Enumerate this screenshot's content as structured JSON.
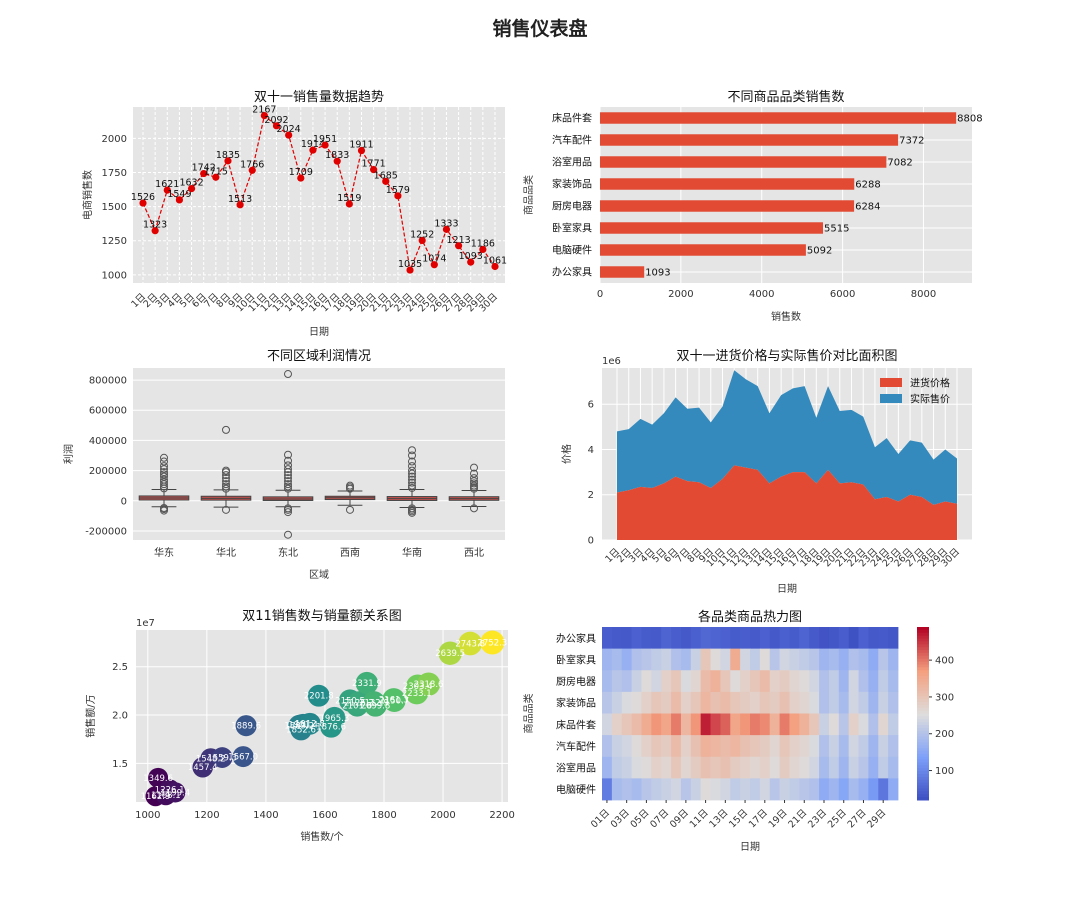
{
  "dashboard": {
    "title": "销售仪表盘"
  },
  "colors": {
    "panel_bg": "#e5e5e5",
    "red": "#e24a33",
    "blue": "#348abd",
    "grid": "#ffffff"
  },
  "chart_data": [
    {
      "id": "trend",
      "type": "line",
      "title": "双十一销售量数据趋势",
      "xlabel": "日期",
      "ylabel": "电商销售数",
      "categories": [
        "1日",
        "2日",
        "3日",
        "4日",
        "5日",
        "6日",
        "7日",
        "8日",
        "9日",
        "10日",
        "11日",
        "12日",
        "13日",
        "14日",
        "15日",
        "16日",
        "17日",
        "18日",
        "19日",
        "20日",
        "21日",
        "22日",
        "23日",
        "24日",
        "25日",
        "26日",
        "27日",
        "28日",
        "29日",
        "30日"
      ],
      "values": [
        1526,
        1323,
        1621,
        1549,
        1632,
        1742,
        1715,
        1835,
        1513,
        1766,
        2167,
        2092,
        2024,
        1709,
        1914,
        1951,
        1833,
        1519,
        1911,
        1771,
        1685,
        1579,
        1035,
        1252,
        1074,
        1333,
        1213,
        1093,
        1186,
        1061
      ],
      "yticks": [
        1000,
        1250,
        1500,
        1750,
        2000
      ],
      "ylim": [
        940,
        2230
      ],
      "line_color": "#e00000",
      "grid": true
    },
    {
      "id": "category",
      "type": "bar",
      "orientation": "horizontal",
      "title": "不同商品品类销售数",
      "xlabel": "销售数",
      "ylabel": "商品品类",
      "categories": [
        "床品件套",
        "汽车配件",
        "浴室用品",
        "家装饰品",
        "厨房电器",
        "卧室家具",
        "电脑硬件",
        "办公家具"
      ],
      "values": [
        8808,
        7372,
        7082,
        6288,
        6284,
        5515,
        5092,
        1093
      ],
      "xticks": [
        0,
        2000,
        4000,
        6000,
        8000
      ],
      "xlim": [
        0,
        9200
      ],
      "grid": true
    },
    {
      "id": "region",
      "type": "box",
      "title": "不同区域利润情况",
      "xlabel": "区域",
      "ylabel": "利润",
      "categories": [
        "华东",
        "华北",
        "东北",
        "西南",
        "华南",
        "西北"
      ],
      "boxes": [
        {
          "q1": 5000,
          "median": 18000,
          "q3": 32000,
          "low": -40000,
          "high": 75000,
          "outliers": [
            -65000,
            -55000,
            -48000,
            82000,
            95000,
            110000,
            125000,
            140000,
            160000,
            175000,
            190000,
            210000,
            230000,
            260000,
            285000
          ]
        },
        {
          "q1": 4000,
          "median": 16000,
          "q3": 30000,
          "low": -42000,
          "high": 72000,
          "outliers": [
            -60000,
            80000,
            95000,
            110000,
            130000,
            150000,
            170000,
            190000,
            200000,
            470000
          ]
        },
        {
          "q1": 2000,
          "median": 12000,
          "q3": 26000,
          "low": -40000,
          "high": 70000,
          "outliers": [
            -225000,
            -75000,
            -60000,
            -50000,
            80000,
            95000,
            110000,
            130000,
            150000,
            170000,
            190000,
            210000,
            235000,
            265000,
            305000,
            840000
          ]
        },
        {
          "q1": 8000,
          "median": 20000,
          "q3": 30000,
          "low": -30000,
          "high": 65000,
          "outliers": [
            -60000,
            80000,
            90000,
            100000
          ]
        },
        {
          "q1": 2000,
          "median": 14000,
          "q3": 28000,
          "low": -45000,
          "high": 75000,
          "outliers": [
            -80000,
            -70000,
            -60000,
            -50000,
            85000,
            100000,
            120000,
            140000,
            160000,
            180000,
            200000,
            230000,
            260000,
            300000,
            335000
          ]
        },
        {
          "q1": 3000,
          "median": 14000,
          "q3": 27000,
          "low": -38000,
          "high": 68000,
          "outliers": [
            -50000,
            80000,
            90000,
            100000,
            115000,
            130000,
            150000,
            180000,
            220000
          ]
        }
      ],
      "yticks": [
        -200000,
        0,
        200000,
        400000,
        600000,
        800000
      ],
      "ylim": [
        -260000,
        880000
      ],
      "box_color": "#c0504d",
      "grid": true
    },
    {
      "id": "price",
      "type": "area",
      "stacked": true,
      "title": "双十一进货价格与实际售价对比面积图",
      "xlabel": "日期",
      "ylabel": "价格",
      "scale_label": "1e6",
      "categories": [
        "1日",
        "2日",
        "3日",
        "4日",
        "5日",
        "6日",
        "7日",
        "8日",
        "9日",
        "10日",
        "11日",
        "12日",
        "13日",
        "14日",
        "15日",
        "16日",
        "17日",
        "18日",
        "19日",
        "20日",
        "21日",
        "22日",
        "23日",
        "24日",
        "25日",
        "26日",
        "27日",
        "28日",
        "29日",
        "30日"
      ],
      "series": [
        {
          "name": "进货价格",
          "color": "#e24a33",
          "values": [
            2.1,
            2.2,
            2.35,
            2.3,
            2.5,
            2.8,
            2.6,
            2.55,
            2.3,
            2.7,
            3.3,
            3.2,
            3.1,
            2.5,
            2.8,
            3.0,
            3.0,
            2.5,
            3.1,
            2.5,
            2.55,
            2.45,
            1.8,
            1.9,
            1.7,
            2.0,
            1.9,
            1.55,
            1.7,
            1.6
          ]
        },
        {
          "name": "实际售价",
          "color": "#348abd",
          "values": [
            2.7,
            2.7,
            3.0,
            2.8,
            3.1,
            3.5,
            3.2,
            3.3,
            2.9,
            3.2,
            4.2,
            3.9,
            3.7,
            3.1,
            3.6,
            3.7,
            3.8,
            2.9,
            3.7,
            3.2,
            3.2,
            3.0,
            2.3,
            2.6,
            2.1,
            2.4,
            2.4,
            2.0,
            2.3,
            2.0
          ]
        }
      ],
      "yticks": [
        0,
        2,
        4,
        6
      ],
      "ylim": [
        0,
        7.6
      ],
      "legend": "top-right",
      "grid": true
    },
    {
      "id": "scatter",
      "type": "scatter",
      "title": "双11销售数与销量额关系图",
      "xlabel": "销售数/个",
      "ylabel": "销售额/万",
      "scale_label": "1e7",
      "points": [
        {
          "x": 1026,
          "y": 11.6,
          "label": "1162.9"
        },
        {
          "x": 1035,
          "y": 13.5,
          "label": "1349.6"
        },
        {
          "x": 1061,
          "y": 11.7,
          "label": "1168.1"
        },
        {
          "x": 1074,
          "y": 12.3,
          "label": "1226.1"
        },
        {
          "x": 1093,
          "y": 12.0,
          "label": "1199.4"
        },
        {
          "x": 1186,
          "y": 14.6,
          "label": "1457.4"
        },
        {
          "x": 1213,
          "y": 15.5,
          "label": "1548.2"
        },
        {
          "x": 1252,
          "y": 15.6,
          "label": "1559.3"
        },
        {
          "x": 1323,
          "y": 15.7,
          "label": "1567.0"
        },
        {
          "x": 1333,
          "y": 18.9,
          "label": "1889.6"
        },
        {
          "x": 1513,
          "y": 18.9,
          "label": "1889.2"
        },
        {
          "x": 1519,
          "y": 18.5,
          "label": "1852.6"
        },
        {
          "x": 1526,
          "y": 19.0,
          "label": "1901.4"
        },
        {
          "x": 1549,
          "y": 19.1,
          "label": "1912.8"
        },
        {
          "x": 1579,
          "y": 22.0,
          "label": "2201.8"
        },
        {
          "x": 1621,
          "y": 18.8,
          "label": "1876.6"
        },
        {
          "x": 1632,
          "y": 19.7,
          "label": "1965.3"
        },
        {
          "x": 1685,
          "y": 21.5,
          "label": "2150.5"
        },
        {
          "x": 1709,
          "y": 21.0,
          "label": "2101.6"
        },
        {
          "x": 1715,
          "y": 21.3,
          "label": "2126.2"
        },
        {
          "x": 1742,
          "y": 23.3,
          "label": "2331.9"
        },
        {
          "x": 1766,
          "y": 21.3,
          "label": "2132.9"
        },
        {
          "x": 1771,
          "y": 21.0,
          "label": "2099.8"
        },
        {
          "x": 1833,
          "y": 21.6,
          "label": "2161.3"
        },
        {
          "x": 1835,
          "y": 21.5,
          "label": "2150.7"
        },
        {
          "x": 1911,
          "y": 22.3,
          "label": "2233.1"
        },
        {
          "x": 1914,
          "y": 23.0,
          "label": "2303.4"
        },
        {
          "x": 1951,
          "y": 23.2,
          "label": "2318.6"
        },
        {
          "x": 2024,
          "y": 26.4,
          "label": "2639.5"
        },
        {
          "x": 2092,
          "y": 27.4,
          "label": "2743.8"
        },
        {
          "x": 2167,
          "y": 27.5,
          "label": "2752.3"
        }
      ],
      "xticks": [
        1000,
        1200,
        1400,
        1600,
        1800,
        2000,
        2200
      ],
      "xlim": [
        960,
        2220
      ],
      "yticks": [
        15,
        20,
        25
      ],
      "ytick_labels": [
        "1.5",
        "2.0",
        "2.5"
      ],
      "ylim": [
        11.0,
        28.8
      ],
      "colormap": "viridis",
      "grid": true
    },
    {
      "id": "heatmap",
      "type": "heatmap",
      "title": "各品类商品热力图",
      "xlabel": "日期",
      "ylabel": "商品品类",
      "rows": [
        "办公家具",
        "卧室家具",
        "厨房电器",
        "家装饰品",
        "床品件套",
        "汽车配件",
        "浴室用品",
        "电脑硬件"
      ],
      "columns": [
        "01日",
        "02日",
        "03日",
        "04日",
        "05日",
        "06日",
        "07日",
        "08日",
        "09日",
        "10日",
        "11日",
        "12日",
        "13日",
        "14日",
        "15日",
        "16日",
        "17日",
        "18日",
        "19日",
        "20日",
        "21日",
        "22日",
        "23日",
        "24日",
        "25日",
        "26日",
        "27日",
        "28日",
        "29日",
        "30日"
      ],
      "xtick_labels": [
        "01日",
        "03日",
        "05日",
        "07日",
        "09日",
        "11日",
        "13日",
        "15日",
        "17日",
        "19日",
        "21日",
        "23日",
        "25日",
        "27日",
        "29日"
      ],
      "values": [
        [
          45,
          40,
          38,
          50,
          42,
          40,
          55,
          45,
          38,
          48,
          60,
          55,
          50,
          42,
          45,
          40,
          50,
          38,
          48,
          42,
          55,
          40,
          30,
          35,
          45,
          28,
          50,
          38,
          40,
          35
        ],
        [
          180,
          190,
          170,
          200,
          210,
          220,
          230,
          200,
          190,
          230,
          300,
          260,
          240,
          350,
          240,
          220,
          260,
          210,
          240,
          230,
          220,
          210,
          180,
          190,
          170,
          200,
          190,
          160,
          210,
          180
        ],
        [
          190,
          210,
          200,
          230,
          260,
          240,
          280,
          300,
          250,
          270,
          320,
          340,
          300,
          260,
          280,
          300,
          320,
          280,
          290,
          270,
          260,
          240,
          200,
          220,
          180,
          240,
          200,
          170,
          220,
          190
        ],
        [
          210,
          230,
          250,
          260,
          280,
          300,
          290,
          320,
          280,
          300,
          330,
          310,
          320,
          300,
          290,
          280,
          300,
          290,
          310,
          280,
          270,
          250,
          200,
          220,
          190,
          240,
          220,
          180,
          230,
          200
        ],
        [
          240,
          280,
          300,
          320,
          350,
          380,
          360,
          400,
          330,
          380,
          470,
          440,
          420,
          360,
          380,
          400,
          390,
          340,
          400,
          370,
          340,
          300,
          230,
          260,
          210,
          280,
          250,
          200,
          270,
          220
        ],
        [
          200,
          230,
          240,
          260,
          280,
          300,
          290,
          320,
          280,
          310,
          340,
          330,
          320,
          330,
          310,
          300,
          290,
          270,
          300,
          280,
          270,
          250,
          200,
          230,
          190,
          240,
          220,
          180,
          230,
          200
        ],
        [
          180,
          220,
          230,
          250,
          260,
          280,
          270,
          300,
          270,
          290,
          310,
          300,
          310,
          290,
          280,
          270,
          280,
          260,
          290,
          270,
          260,
          240,
          190,
          220,
          180,
          230,
          210,
          170,
          220,
          190
        ],
        [
          90,
          190,
          200,
          190,
          210,
          220,
          230,
          240,
          210,
          230,
          260,
          250,
          240,
          220,
          230,
          220,
          240,
          210,
          230,
          220,
          210,
          200,
          160,
          180,
          150,
          190,
          170,
          130,
          80,
          160
        ]
      ],
      "vmin": 20,
      "vmax": 490,
      "colorbar_ticks": [
        100,
        200,
        300,
        400
      ],
      "colormap": "coolwarm"
    }
  ]
}
